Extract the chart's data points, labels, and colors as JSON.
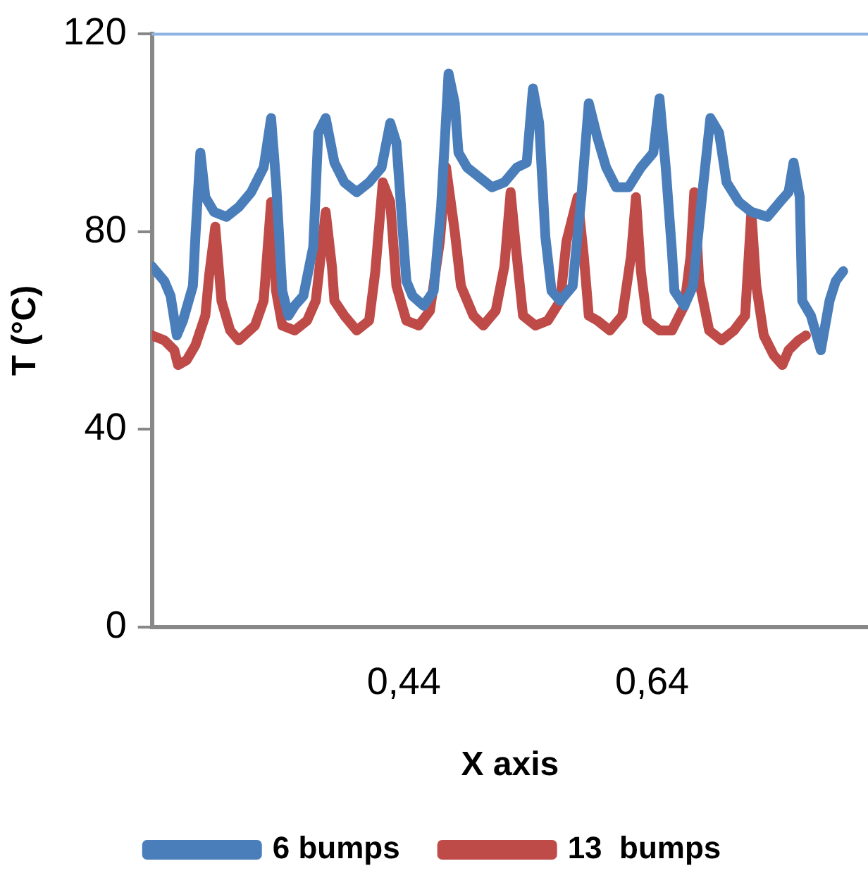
{
  "chart_data": {
    "type": "line",
    "xlabel": "X axis",
    "ylabel": "T (°C)",
    "xlim": [
      0.237,
      0.814
    ],
    "xticks": [
      {
        "value": 0.44,
        "label": "0,44"
      },
      {
        "value": 0.64,
        "label": "0,64"
      }
    ],
    "ylim": [
      0,
      120
    ],
    "yticks": [
      0,
      40,
      80,
      120
    ],
    "grid": false,
    "legend": "bottom",
    "marker": "none",
    "line_style": "solid",
    "series": [
      {
        "name": "6 bumps",
        "color": "#4a7ebb",
        "x": [
          0.237,
          0.247,
          0.252,
          0.257,
          0.262,
          0.27,
          0.272,
          0.276,
          0.28,
          0.287,
          0.297,
          0.307,
          0.317,
          0.327,
          0.333,
          0.337,
          0.342,
          0.347,
          0.352,
          0.359,
          0.367,
          0.371,
          0.377,
          0.384,
          0.392,
          0.402,
          0.412,
          0.422,
          0.429,
          0.434,
          0.442,
          0.447,
          0.456,
          0.464,
          0.47,
          0.476,
          0.481,
          0.484,
          0.491,
          0.501,
          0.511,
          0.521,
          0.531,
          0.539,
          0.544,
          0.549,
          0.554,
          0.559,
          0.566,
          0.576,
          0.583,
          0.589,
          0.596,
          0.603,
          0.611,
          0.621,
          0.631,
          0.641,
          0.646,
          0.651,
          0.656,
          0.658,
          0.666,
          0.673,
          0.681,
          0.687,
          0.694,
          0.7,
          0.71,
          0.72,
          0.733,
          0.743,
          0.75,
          0.754,
          0.759,
          0.761,
          0.768,
          0.776,
          0.783,
          0.788,
          0.794
        ],
        "values": [
          73,
          70,
          67,
          59,
          62,
          69,
          79,
          96,
          87,
          84,
          83,
          85,
          88,
          93,
          103,
          90,
          68,
          63,
          65,
          67,
          77,
          100,
          103,
          94,
          90,
          88,
          90,
          93,
          102,
          98,
          70,
          67,
          65,
          68,
          85,
          112,
          106,
          96,
          93,
          91,
          89,
          90,
          93,
          94,
          109,
          102,
          79,
          68,
          66,
          69,
          87,
          106,
          99,
          93,
          89,
          89,
          93,
          96,
          107,
          93,
          76,
          68,
          65,
          69,
          89,
          103,
          100,
          90,
          86,
          84,
          83,
          86,
          88,
          94,
          87,
          66,
          63,
          56,
          66,
          70,
          72
        ]
      },
      {
        "name": "13  bumps",
        "color": "#be4b48",
        "x": [
          0.237,
          0.247,
          0.255,
          0.258,
          0.265,
          0.272,
          0.28,
          0.283,
          0.288,
          0.293,
          0.3,
          0.307,
          0.32,
          0.327,
          0.333,
          0.337,
          0.342,
          0.352,
          0.362,
          0.369,
          0.377,
          0.382,
          0.384,
          0.392,
          0.402,
          0.412,
          0.417,
          0.423,
          0.429,
          0.434,
          0.442,
          0.452,
          0.461,
          0.469,
          0.474,
          0.481,
          0.486,
          0.496,
          0.504,
          0.514,
          0.521,
          0.526,
          0.531,
          0.536,
          0.546,
          0.556,
          0.566,
          0.571,
          0.58,
          0.585,
          0.589,
          0.596,
          0.606,
          0.616,
          0.623,
          0.627,
          0.631,
          0.636,
          0.646,
          0.656,
          0.666,
          0.671,
          0.674,
          0.678,
          0.686,
          0.696,
          0.706,
          0.715,
          0.72,
          0.724,
          0.73,
          0.738,
          0.745,
          0.75,
          0.758,
          0.764
        ],
        "values": [
          59,
          58,
          56,
          53,
          54,
          57,
          63,
          71,
          81,
          66,
          60,
          58,
          61,
          66,
          86,
          68,
          61,
          60,
          62,
          66,
          84,
          73,
          66,
          63,
          60,
          62,
          72,
          90,
          86,
          69,
          62,
          61,
          64,
          78,
          93,
          80,
          69,
          63,
          61,
          64,
          73,
          88,
          75,
          63,
          61,
          62,
          66,
          78,
          87,
          75,
          63,
          62,
          60,
          63,
          75,
          87,
          72,
          62,
          60,
          60,
          65,
          75,
          88,
          70,
          60,
          58,
          60,
          63,
          84,
          69,
          59,
          55,
          53,
          56,
          58,
          59
        ]
      }
    ]
  }
}
